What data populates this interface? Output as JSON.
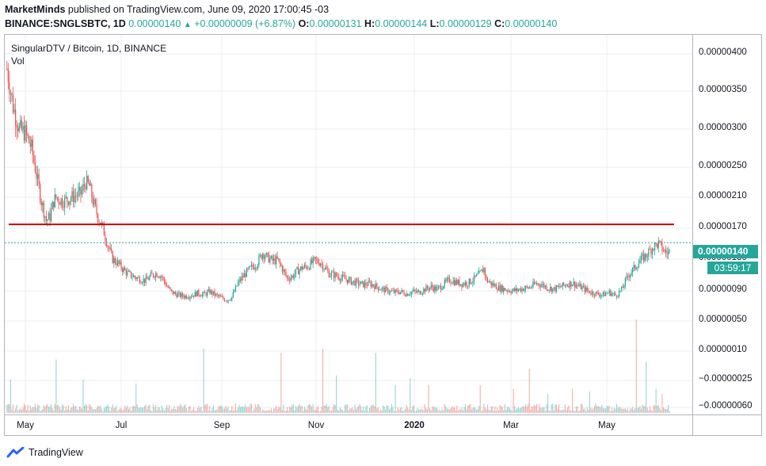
{
  "header": {
    "publisher": "MarketMinds",
    "published_text": "published on TradingView.com, June 09, 2020 17:00:45 -03"
  },
  "ohlc": {
    "symbol": "BINANCE:SNGLSBTC, 1D",
    "last": "0.00000140",
    "change_arrow": "▲",
    "change": "+0.00000009 (+6.87%)",
    "o_label": "O:",
    "o": "0.00000131",
    "h_label": "H:",
    "h": "0.00000144",
    "l_label": "L:",
    "l": "0.00000129",
    "c_label": "C:",
    "c": "0.00000140"
  },
  "legend": {
    "title": "SingularDTV / Bitcoin, 1D, BINANCE",
    "vol": "Vol"
  },
  "price_tag": "0.00000140",
  "countdown": "03:59:17",
  "footer": {
    "brand": "TradingView",
    "logo_icon": "tradingview-logo-icon"
  },
  "colors": {
    "up": "#26a69a",
    "down": "#ef5350",
    "resistance": "#cc0000",
    "grid": "#e9ecf2"
  },
  "y_axis": {
    "ticks": [
      "0.00000400",
      "0.00000350",
      "0.00000300",
      "0.00000250",
      "0.00000210",
      "0.00000170",
      "0.00000130",
      "0.00000090",
      "0.00000050",
      "0.00000010",
      "−0.00000025",
      "−0.00000060"
    ],
    "tick_values": [
      400,
      350,
      300,
      250,
      210,
      170,
      130,
      90,
      50,
      10,
      -25,
      -60
    ]
  },
  "x_axis": {
    "ticks": [
      {
        "label": "May",
        "bold": false
      },
      {
        "label": "Jul",
        "bold": false
      },
      {
        "label": "Sep",
        "bold": false
      },
      {
        "label": "Nov",
        "bold": false
      },
      {
        "label": "2020",
        "bold": true
      },
      {
        "label": "Mar",
        "bold": false
      },
      {
        "label": "May",
        "bold": false
      }
    ]
  },
  "chart_data": {
    "type": "candlestick",
    "symbol": "SNGLSBTC",
    "interval": "1D",
    "exchange": "BINANCE",
    "y_unit": "BTC x 1e-8 (satoshi)",
    "resistance_level": 175,
    "last_price": 140,
    "path_points": [
      [
        0,
        380
      ],
      [
        5,
        330
      ],
      [
        10,
        300
      ],
      [
        15,
        295
      ],
      [
        20,
        275
      ],
      [
        24,
        240
      ],
      [
        28,
        205
      ],
      [
        32,
        180
      ],
      [
        35,
        185
      ],
      [
        38,
        205
      ],
      [
        40,
        210
      ],
      [
        45,
        205
      ],
      [
        50,
        208
      ],
      [
        55,
        212
      ],
      [
        60,
        215
      ],
      [
        64,
        230
      ],
      [
        67,
        225
      ],
      [
        70,
        205
      ],
      [
        74,
        185
      ],
      [
        78,
        170
      ],
      [
        82,
        148
      ],
      [
        86,
        130
      ],
      [
        90,
        125
      ],
      [
        94,
        118
      ],
      [
        98,
        112
      ],
      [
        103,
        108
      ],
      [
        108,
        105
      ],
      [
        113,
        103
      ],
      [
        118,
        110
      ],
      [
        122,
        112
      ],
      [
        126,
        108
      ],
      [
        130,
        96
      ],
      [
        134,
        88
      ],
      [
        140,
        84
      ],
      [
        145,
        83
      ],
      [
        150,
        84
      ],
      [
        155,
        87
      ],
      [
        160,
        85
      ],
      [
        165,
        89
      ],
      [
        170,
        84
      ],
      [
        175,
        80
      ],
      [
        179,
        78
      ],
      [
        183,
        82
      ],
      [
        188,
        100
      ],
      [
        193,
        110
      ],
      [
        198,
        118
      ],
      [
        203,
        124
      ],
      [
        208,
        138
      ],
      [
        212,
        132
      ],
      [
        216,
        128
      ],
      [
        220,
        129
      ],
      [
        224,
        118
      ],
      [
        228,
        106
      ],
      [
        232,
        108
      ],
      [
        236,
        115
      ],
      [
        240,
        119
      ],
      [
        245,
        121
      ],
      [
        250,
        128
      ],
      [
        255,
        126
      ],
      [
        258,
        120
      ],
      [
        262,
        112
      ],
      [
        266,
        110
      ],
      [
        270,
        108
      ],
      [
        275,
        105
      ],
      [
        280,
        102
      ],
      [
        285,
        100
      ],
      [
        290,
        98
      ],
      [
        295,
        99
      ],
      [
        300,
        96
      ],
      [
        305,
        92
      ],
      [
        310,
        90
      ],
      [
        315,
        88
      ],
      [
        320,
        89
      ],
      [
        325,
        86
      ],
      [
        330,
        89
      ],
      [
        335,
        88
      ],
      [
        340,
        92
      ],
      [
        345,
        95
      ],
      [
        350,
        92
      ],
      [
        355,
        98
      ],
      [
        360,
        104
      ],
      [
        365,
        101
      ],
      [
        370,
        99
      ],
      [
        375,
        100
      ],
      [
        380,
        105
      ],
      [
        385,
        112
      ],
      [
        388,
        118
      ],
      [
        390,
        104
      ],
      [
        395,
        98
      ],
      [
        400,
        94
      ],
      [
        405,
        92
      ],
      [
        410,
        90
      ],
      [
        415,
        91
      ],
      [
        420,
        93
      ],
      [
        425,
        94
      ],
      [
        430,
        99
      ],
      [
        435,
        98
      ],
      [
        440,
        94
      ],
      [
        445,
        92
      ],
      [
        450,
        95
      ],
      [
        455,
        98
      ],
      [
        460,
        100
      ],
      [
        465,
        96
      ],
      [
        470,
        92
      ],
      [
        475,
        88
      ],
      [
        480,
        86
      ],
      [
        485,
        85
      ],
      [
        490,
        88
      ],
      [
        495,
        84
      ],
      [
        500,
        91
      ],
      [
        505,
        109
      ],
      [
        510,
        118
      ],
      [
        515,
        128
      ],
      [
        520,
        135
      ],
      [
        525,
        145
      ],
      [
        530,
        150
      ],
      [
        536,
        138
      ],
      [
        540,
        140
      ]
    ],
    "volume_spikes": [
      [
        3,
        25
      ],
      [
        40,
        40
      ],
      [
        62,
        25
      ],
      [
        105,
        22
      ],
      [
        160,
        48
      ],
      [
        223,
        45
      ],
      [
        257,
        48
      ],
      [
        268,
        28
      ],
      [
        300,
        45
      ],
      [
        316,
        21
      ],
      [
        328,
        26
      ],
      [
        343,
        21
      ],
      [
        385,
        21
      ],
      [
        412,
        18
      ],
      [
        425,
        33
      ],
      [
        440,
        14
      ],
      [
        460,
        18
      ],
      [
        474,
        16
      ],
      [
        512,
        70
      ],
      [
        520,
        38
      ],
      [
        528,
        18
      ],
      [
        533,
        14
      ]
    ],
    "volume_axis_max": 70
  }
}
